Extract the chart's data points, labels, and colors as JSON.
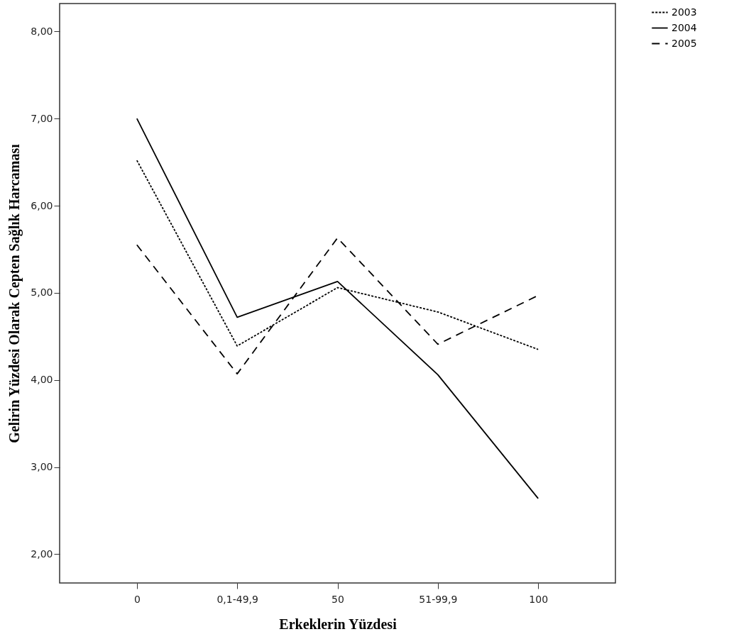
{
  "chart_data": {
    "type": "line",
    "xlabel": "Erkeklerin Yüzdesi",
    "ylabel": "Gelirin Yüzdesi Olarak Cepten Sağlık Harcaması",
    "categories": [
      "0",
      "0,1-49,9",
      "50",
      "51-99,9",
      "100"
    ],
    "series": [
      {
        "name": "2003",
        "color": "#000000",
        "line_style": "dotted",
        "values": [
          6.52,
          4.39,
          5.06,
          4.78,
          4.35
        ]
      },
      {
        "name": "2004",
        "color": "#000000",
        "line_style": "solid",
        "values": [
          7.0,
          4.72,
          5.13,
          4.06,
          2.64
        ]
      },
      {
        "name": "2005",
        "color": "#000000",
        "line_style": "dashed",
        "values": [
          5.55,
          4.07,
          5.63,
          4.41,
          4.97
        ]
      }
    ],
    "ylim": [
      1.67,
      8.32
    ],
    "yticks": [
      {
        "value": 2,
        "label": "2,00"
      },
      {
        "value": 3,
        "label": "3,00"
      },
      {
        "value": 4,
        "label": "4,00"
      },
      {
        "value": 5,
        "label": "5,00"
      },
      {
        "value": 6,
        "label": "6,00"
      },
      {
        "value": 7,
        "label": "7,00"
      },
      {
        "value": 8,
        "label": "8,00"
      }
    ],
    "grid": false,
    "legend": "top right",
    "marker": "none"
  }
}
